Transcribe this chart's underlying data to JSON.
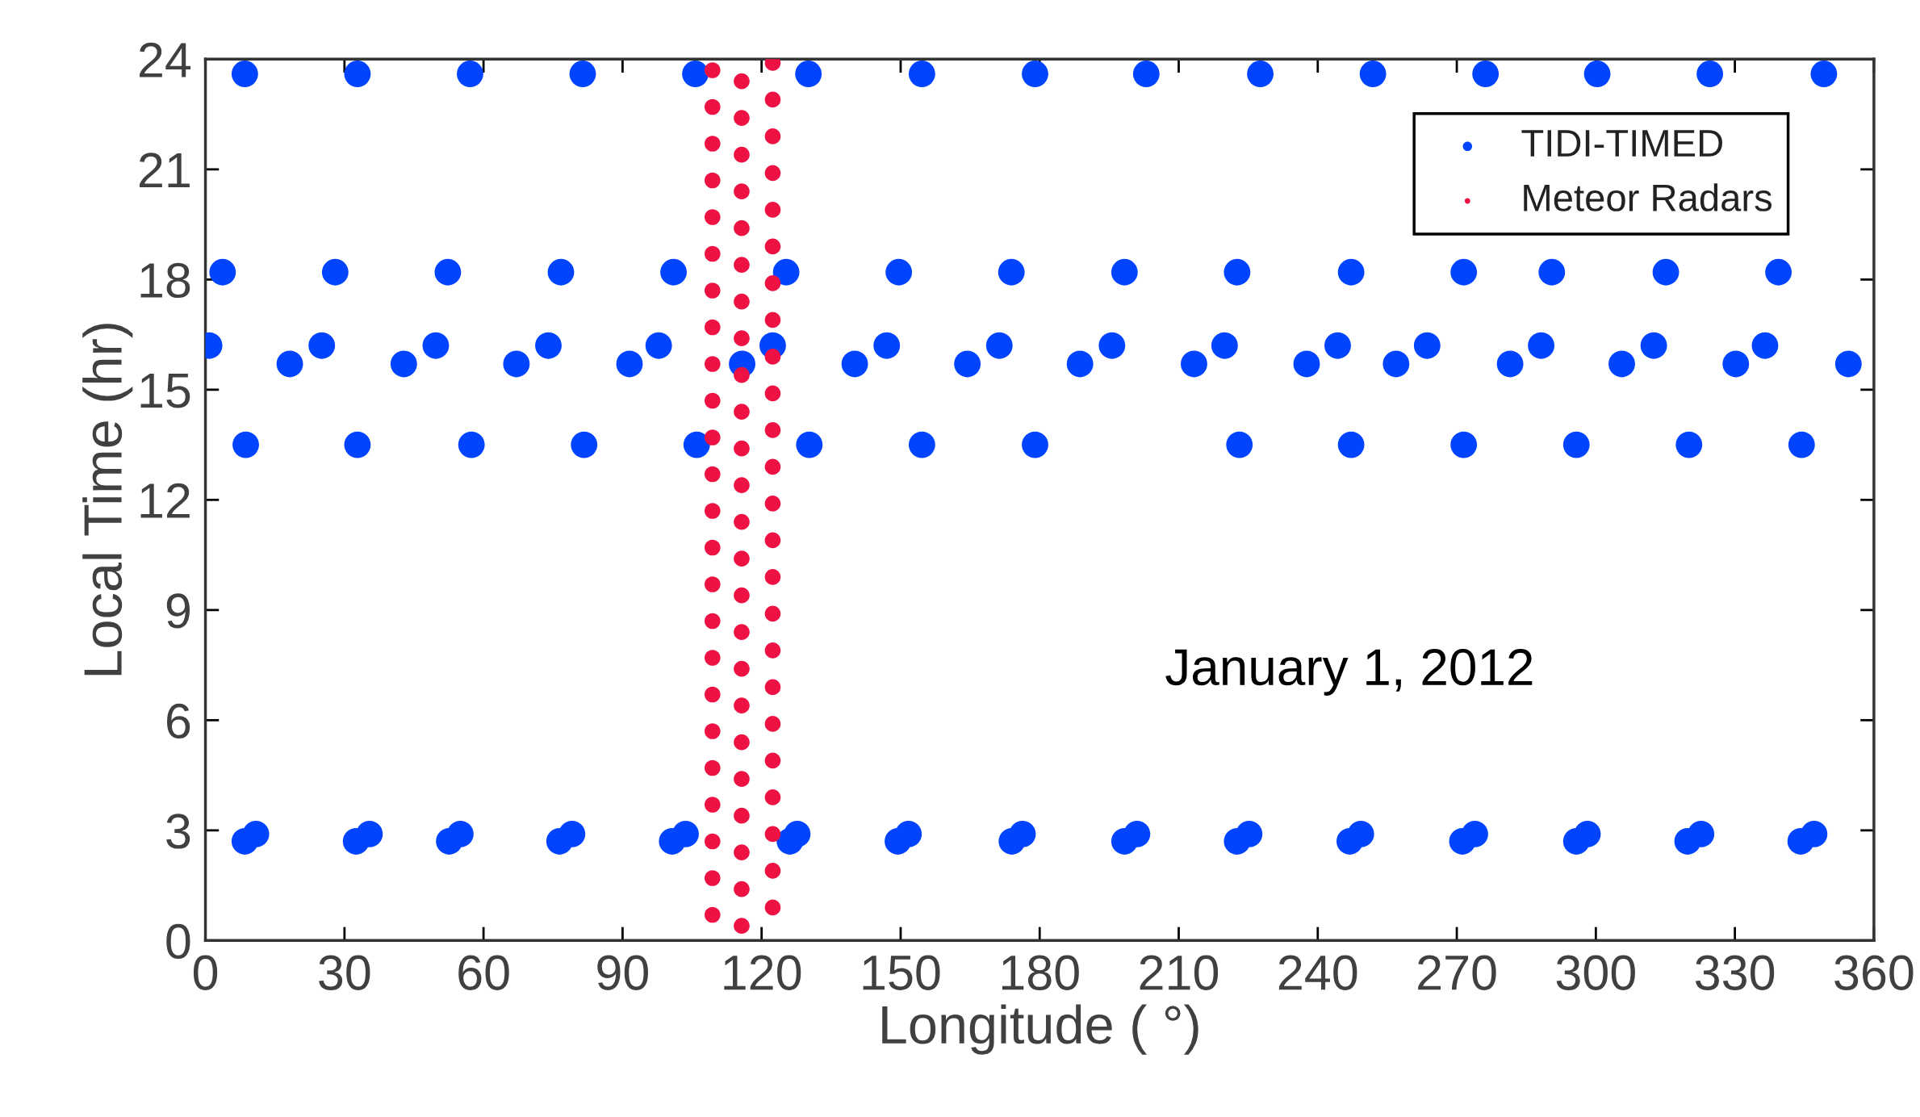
{
  "chart_data": {
    "type": "scatter",
    "xlabel": "Longitude ( °)",
    "ylabel": "Local Time (hr)",
    "xlim": [
      0,
      360
    ],
    "xticks": [
      0,
      30,
      60,
      90,
      120,
      150,
      180,
      210,
      240,
      270,
      300,
      330,
      360
    ],
    "ylim": [
      0,
      24
    ],
    "yticks": [
      0,
      3,
      6,
      9,
      12,
      15,
      18,
      21,
      24
    ],
    "grid": false,
    "legend": "top right",
    "marker": "circle",
    "annotations": [
      "January 1, 2012"
    ],
    "series": [
      {
        "name": "TIDI-TIMED",
        "color": "#0044ff",
        "x": [
          8.5,
          32.8,
          57.1,
          81.4,
          105.7,
          130.1,
          154.6,
          179.0,
          203.0,
          227.6,
          251.9,
          276.2,
          300.3,
          324.6,
          349.2,
          3.7,
          28.0,
          52.3,
          76.7,
          101.0,
          125.3,
          149.6,
          173.9,
          198.3,
          222.6,
          247.2,
          271.5,
          290.5,
          315.1,
          339.4,
          0.8,
          25.1,
          49.7,
          74.0,
          97.8,
          122.4,
          147.0,
          171.3,
          195.6,
          219.9,
          244.3,
          263.6,
          288.2,
          312.5,
          336.5,
          18.2,
          42.8,
          67.1,
          91.5,
          115.8,
          140.1,
          164.4,
          188.7,
          213.3,
          237.6,
          256.9,
          281.5,
          305.6,
          330.2,
          354.5,
          8.7,
          32.8,
          57.4,
          81.7,
          106.0,
          130.3,
          154.6,
          179.0,
          223.1,
          247.2,
          271.5,
          295.8,
          320.1,
          344.4,
          8.5,
          10.9,
          32.5,
          35.4,
          52.6,
          55.0,
          76.4,
          79.1,
          100.7,
          103.6,
          126.1,
          127.7,
          149.4,
          151.7,
          174.0,
          176.3,
          198.3,
          201.0,
          222.6,
          225.2,
          246.9,
          249.3,
          271.2,
          273.9,
          295.8,
          298.2,
          319.8,
          322.7,
          344.2,
          347.1
        ],
        "values": [
          23.6,
          23.6,
          23.6,
          23.6,
          23.6,
          23.6,
          23.6,
          23.6,
          23.6,
          23.6,
          23.6,
          23.6,
          23.6,
          23.6,
          23.6,
          18.2,
          18.2,
          18.2,
          18.2,
          18.2,
          18.2,
          18.2,
          18.2,
          18.2,
          18.2,
          18.2,
          18.2,
          18.2,
          18.2,
          18.2,
          16.2,
          16.2,
          16.2,
          16.2,
          16.2,
          16.2,
          16.2,
          16.2,
          16.2,
          16.2,
          16.2,
          16.2,
          16.2,
          16.2,
          16.2,
          15.7,
          15.7,
          15.7,
          15.7,
          15.7,
          15.7,
          15.7,
          15.7,
          15.7,
          15.7,
          15.7,
          15.7,
          15.7,
          15.7,
          15.7,
          13.5,
          13.5,
          13.5,
          13.5,
          13.5,
          13.5,
          13.5,
          13.5,
          13.5,
          13.5,
          13.5,
          13.5,
          13.5,
          13.5,
          2.7,
          2.9,
          2.7,
          2.9,
          2.7,
          2.9,
          2.7,
          2.9,
          2.7,
          2.9,
          2.7,
          2.9,
          2.7,
          2.9,
          2.7,
          2.9,
          2.7,
          2.9,
          2.7,
          2.9,
          2.7,
          2.9,
          2.7,
          2.9,
          2.7,
          2.9,
          2.7,
          2.9,
          2.7,
          2.9
        ]
      },
      {
        "name": "Meteor Radars",
        "color": "#ee1144",
        "x": [
          109.4,
          109.4,
          109.4,
          109.4,
          109.4,
          109.4,
          109.4,
          109.4,
          109.4,
          109.4,
          109.4,
          109.4,
          109.4,
          109.4,
          109.4,
          109.4,
          109.4,
          109.4,
          109.4,
          109.4,
          109.4,
          109.4,
          109.4,
          109.4,
          115.7,
          115.7,
          115.7,
          115.7,
          115.7,
          115.7,
          115.7,
          115.7,
          115.7,
          115.7,
          115.7,
          115.7,
          115.7,
          115.7,
          115.7,
          115.7,
          115.7,
          115.7,
          115.7,
          115.7,
          115.7,
          115.7,
          115.7,
          115.7,
          122.4,
          122.4,
          122.4,
          122.4,
          122.4,
          122.4,
          122.4,
          122.4,
          122.4,
          122.4,
          122.4,
          122.4,
          122.4,
          122.4,
          122.4,
          122.4,
          122.4,
          122.4,
          122.4,
          122.4,
          122.4,
          122.4,
          122.4,
          122.4
        ],
        "values": [
          23.7,
          22.7,
          21.7,
          20.7,
          19.7,
          18.7,
          17.7,
          16.7,
          15.7,
          14.7,
          13.7,
          12.7,
          11.7,
          10.7,
          9.7,
          8.7,
          7.7,
          6.7,
          5.7,
          4.7,
          3.7,
          2.7,
          1.7,
          0.7,
          23.4,
          22.4,
          21.4,
          20.4,
          19.4,
          18.4,
          17.4,
          16.4,
          15.4,
          14.4,
          13.4,
          12.4,
          11.4,
          10.4,
          9.4,
          8.4,
          7.4,
          6.4,
          5.4,
          4.4,
          3.4,
          2.4,
          1.4,
          0.4,
          23.9,
          22.9,
          21.9,
          20.9,
          19.9,
          18.9,
          17.9,
          16.9,
          15.9,
          14.9,
          13.9,
          12.9,
          11.9,
          10.9,
          9.9,
          8.9,
          7.9,
          6.9,
          5.9,
          4.9,
          3.9,
          2.9,
          1.9,
          0.9
        ]
      }
    ]
  }
}
